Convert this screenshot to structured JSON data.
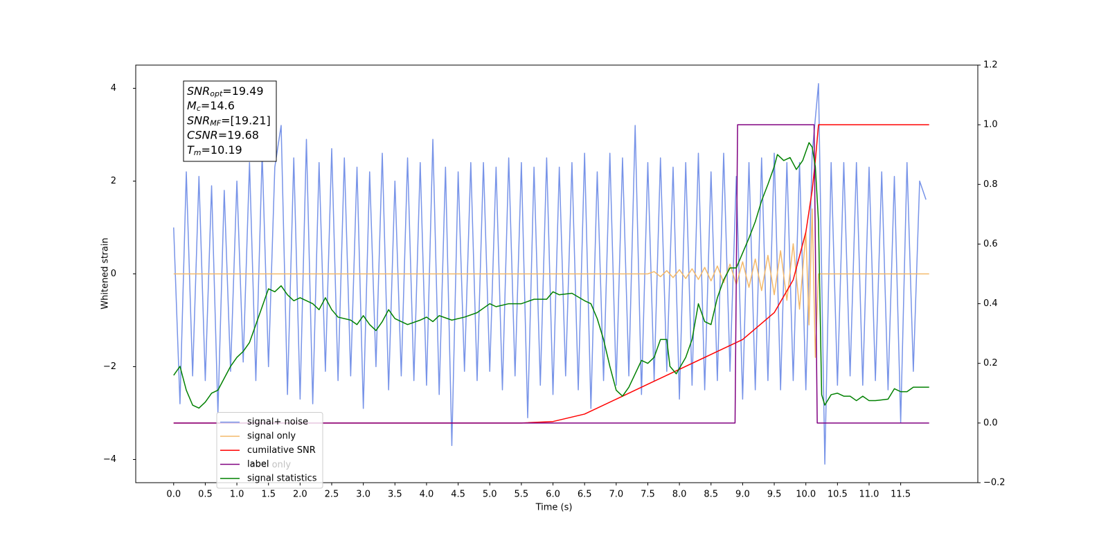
{
  "chart_data": {
    "type": "line",
    "xlabel": "Time (s)",
    "ylabel": "Whitened strain",
    "xlim": [
      -0.6,
      12.72
    ],
    "ylim": [
      -4.5,
      4.5
    ],
    "y2lim": [
      -0.2,
      1.2
    ],
    "xticks": [
      {
        "value": 0,
        "label": "0.0"
      },
      {
        "value": 0.5,
        "label": "0.5"
      },
      {
        "value": 1,
        "label": "1.0"
      },
      {
        "value": 1.5,
        "label": "1.5"
      },
      {
        "value": 2,
        "label": "2.0"
      },
      {
        "value": 2.5,
        "label": "2.5"
      },
      {
        "value": 3,
        "label": "3.0"
      },
      {
        "value": 3.5,
        "label": "3.5"
      },
      {
        "value": 4,
        "label": "4.0"
      },
      {
        "value": 4.5,
        "label": "4.5"
      },
      {
        "value": 5,
        "label": "5.0"
      },
      {
        "value": 5.5,
        "label": "5.5"
      },
      {
        "value": 6,
        "label": "6.0"
      },
      {
        "value": 6.5,
        "label": "6.5"
      },
      {
        "value": 7,
        "label": "7.0"
      },
      {
        "value": 7.5,
        "label": "7.5"
      },
      {
        "value": 8,
        "label": "8.0"
      },
      {
        "value": 8.5,
        "label": "8.5"
      },
      {
        "value": 9,
        "label": "9.0"
      },
      {
        "value": 9.5,
        "label": "9.5"
      },
      {
        "value": 10,
        "label": "10.0"
      },
      {
        "value": 10.5,
        "label": "10.5"
      },
      {
        "value": 11,
        "label": "11.0"
      },
      {
        "value": 11.5,
        "label": "11.5"
      }
    ],
    "yticks": [
      {
        "value": -4,
        "label": "−4"
      },
      {
        "value": -2,
        "label": "−2"
      },
      0,
      2,
      4
    ],
    "y2ticks": [
      {
        "value": -0.2,
        "label": "−0.2"
      },
      {
        "value": 0,
        "label": "0.0"
      },
      {
        "value": 0.2,
        "label": "0.2"
      },
      {
        "value": 0.4,
        "label": "0.4"
      },
      {
        "value": 0.6,
        "label": "0.6"
      },
      {
        "value": 0.8,
        "label": "0.8"
      },
      {
        "value": 1,
        "label": "1.0"
      },
      {
        "value": 1.2,
        "label": "1.2"
      }
    ],
    "legend": "lower left",
    "hidden_legend_entries": [
      "label only"
    ],
    "annotation_lines": [
      {
        "name": "SNR",
        "sub": "opt",
        "text": "=19.49"
      },
      {
        "name": "M",
        "sub": "c",
        "text": "=14.6"
      },
      {
        "name": "SNR",
        "sub": "MF",
        "text": "=[19.21]"
      },
      {
        "name": "CSNR",
        "text": "=19.68"
      },
      {
        "name": "T",
        "sub": "m",
        "text": "=10.19"
      }
    ],
    "series": [
      {
        "name": "signal+ noise",
        "color": "#7793e8",
        "x": [
          0,
          0.1,
          0.2,
          0.3,
          0.4,
          0.5,
          0.6,
          0.7,
          0.8,
          0.9,
          1,
          1.1,
          1.2,
          1.3,
          1.4,
          1.5,
          1.6,
          1.7,
          1.8,
          1.9,
          2,
          2.1,
          2.2,
          2.3,
          2.4,
          2.5,
          2.6,
          2.7,
          2.8,
          2.9,
          3,
          3.1,
          3.2,
          3.3,
          3.4,
          3.5,
          3.6,
          3.7,
          3.8,
          3.9,
          4,
          4.1,
          4.2,
          4.3,
          4.4,
          4.5,
          4.6,
          4.7,
          4.8,
          4.9,
          5,
          5.1,
          5.2,
          5.3,
          5.4,
          5.5,
          5.6,
          5.7,
          5.8,
          5.9,
          6,
          6.1,
          6.2,
          6.3,
          6.4,
          6.5,
          6.6,
          6.7,
          6.8,
          6.9,
          7,
          7.1,
          7.2,
          7.3,
          7.4,
          7.5,
          7.6,
          7.7,
          7.8,
          7.9,
          8,
          8.1,
          8.2,
          8.3,
          8.4,
          8.5,
          8.6,
          8.7,
          8.8,
          8.9,
          9,
          9.1,
          9.2,
          9.3,
          9.4,
          9.5,
          9.6,
          9.7,
          9.8,
          9.9,
          10,
          10.1,
          10.2,
          10.3,
          10.4,
          10.5,
          10.6,
          10.7,
          10.8,
          10.9,
          11,
          11.1,
          11.2,
          11.3,
          11.4,
          11.5,
          11.6,
          11.7,
          11.8,
          11.9
        ],
        "values": [
          1.0,
          -2.8,
          2.2,
          -2.2,
          2.1,
          -2.3,
          1.9,
          -3.0,
          1.8,
          -2.1,
          2.0,
          -1.9,
          2.4,
          -2.3,
          2.6,
          -2.0,
          2.3,
          3.2,
          -2.6,
          2.5,
          -2.7,
          2.9,
          -2.8,
          2.4,
          -2.1,
          2.7,
          -2.3,
          2.5,
          -2.2,
          2.3,
          -2.9,
          2.2,
          -2.0,
          2.6,
          -2.5,
          2.0,
          -2.2,
          2.5,
          -2.3,
          2.4,
          -2.4,
          2.9,
          -2.6,
          2.3,
          -3.7,
          2.2,
          -2.1,
          2.4,
          -2.3,
          2.4,
          -2.1,
          2.3,
          -2.5,
          2.5,
          -2.2,
          2.4,
          -3.1,
          2.3,
          -2.4,
          2.5,
          -2.6,
          2.3,
          -2.2,
          2.4,
          -2.5,
          2.6,
          -2.9,
          2.2,
          -2.3,
          2.6,
          -2.4,
          2.5,
          -2.2,
          3.2,
          -2.6,
          2.4,
          -2.3,
          2.5,
          -2.1,
          2.3,
          -2.7,
          2.4,
          -2.4,
          2.6,
          -2.5,
          2.2,
          -2.3,
          2.6,
          -2.1,
          2.1,
          -2.7,
          2.4,
          -2.5,
          2.5,
          -2.3,
          2.6,
          -2.5,
          2.4,
          -2.3,
          2.4,
          -2.5,
          2.6,
          4.1,
          -4.1,
          2.4,
          -2.4,
          2.4,
          -2.2,
          2.4,
          -2.4,
          2.3,
          -2.3,
          2.2,
          -2.5,
          2.1,
          -3.2,
          2.4,
          -2.1,
          2.0,
          1.6
        ]
      },
      {
        "name": "signal only",
        "color": "#f4b96a",
        "x": [
          0,
          7.5,
          7.6,
          7.7,
          7.8,
          7.9,
          8,
          8.1,
          8.2,
          8.3,
          8.4,
          8.5,
          8.6,
          8.7,
          8.8,
          8.9,
          9,
          9.1,
          9.2,
          9.3,
          9.4,
          9.5,
          9.6,
          9.7,
          9.8,
          9.9,
          10,
          10.05,
          10.1,
          10.15,
          10.2,
          11.95
        ],
        "values": [
          0,
          0,
          0.05,
          -0.06,
          0.07,
          -0.08,
          0.09,
          -0.1,
          0.11,
          -0.12,
          0.14,
          -0.15,
          0.17,
          -0.19,
          0.21,
          -0.23,
          0.26,
          -0.29,
          0.32,
          -0.36,
          0.4,
          -0.45,
          0.5,
          -0.57,
          0.65,
          -0.76,
          0.9,
          -1.1,
          1.4,
          -1.8,
          0,
          0
        ]
      },
      {
        "name": "cumilative SNR",
        "color": "#ff0000",
        "axis": "y2",
        "x": [
          0,
          5.5,
          6,
          6.5,
          7,
          7.5,
          8,
          8.5,
          9,
          9.5,
          9.8,
          10,
          10.1,
          10.15,
          10.2,
          11.95
        ],
        "values": [
          0,
          0,
          0.005,
          0.03,
          0.08,
          0.13,
          0.18,
          0.23,
          0.28,
          0.37,
          0.48,
          0.64,
          0.78,
          0.88,
          1,
          1
        ]
      },
      {
        "name": "label",
        "color": "#800080",
        "axis": "y2",
        "x": [
          0,
          8.88,
          8.92,
          10.13,
          10.18,
          11.95
        ],
        "values": [
          0,
          0,
          1,
          1,
          0,
          0
        ]
      },
      {
        "name": "signal statistics",
        "color": "#008000",
        "axis": "y2",
        "x": [
          0,
          0.1,
          0.2,
          0.3,
          0.4,
          0.5,
          0.6,
          0.7,
          0.8,
          0.9,
          1,
          1.1,
          1.2,
          1.3,
          1.4,
          1.5,
          1.6,
          1.7,
          1.8,
          1.9,
          2,
          2.2,
          2.3,
          2.4,
          2.5,
          2.6,
          2.8,
          2.9,
          3,
          3.1,
          3.2,
          3.3,
          3.4,
          3.5,
          3.7,
          3.9,
          4,
          4.1,
          4.2,
          4.4,
          4.6,
          4.8,
          5,
          5.1,
          5.3,
          5.5,
          5.7,
          5.9,
          6,
          6.1,
          6.3,
          6.5,
          6.6,
          6.7,
          6.8,
          6.9,
          7,
          7.1,
          7.2,
          7.3,
          7.4,
          7.5,
          7.6,
          7.7,
          7.8,
          7.85,
          7.95,
          8.1,
          8.2,
          8.3,
          8.4,
          8.5,
          8.6,
          8.7,
          8.8,
          8.9,
          9,
          9.1,
          9.2,
          9.3,
          9.4,
          9.5,
          9.55,
          9.65,
          9.75,
          9.85,
          9.95,
          10.05,
          10.1,
          10.15,
          10.2,
          10.25,
          10.3,
          10.4,
          10.5,
          10.6,
          10.7,
          10.8,
          10.9,
          11,
          11.1,
          11.3,
          11.4,
          11.5,
          11.6,
          11.7,
          11.9,
          11.95
        ],
        "values": [
          0.16,
          0.19,
          0.11,
          0.06,
          0.05,
          0.07,
          0.1,
          0.11,
          0.15,
          0.19,
          0.22,
          0.24,
          0.27,
          0.33,
          0.39,
          0.45,
          0.44,
          0.46,
          0.43,
          0.41,
          0.42,
          0.4,
          0.38,
          0.42,
          0.38,
          0.355,
          0.345,
          0.33,
          0.36,
          0.33,
          0.31,
          0.34,
          0.38,
          0.35,
          0.33,
          0.345,
          0.355,
          0.34,
          0.36,
          0.345,
          0.355,
          0.37,
          0.4,
          0.39,
          0.4,
          0.4,
          0.415,
          0.415,
          0.44,
          0.43,
          0.435,
          0.41,
          0.4,
          0.35,
          0.28,
          0.19,
          0.11,
          0.09,
          0.12,
          0.165,
          0.21,
          0.2,
          0.22,
          0.28,
          0.28,
          0.19,
          0.165,
          0.22,
          0.28,
          0.4,
          0.34,
          0.33,
          0.42,
          0.48,
          0.52,
          0.52,
          0.57,
          0.62,
          0.675,
          0.745,
          0.8,
          0.86,
          0.9,
          0.88,
          0.89,
          0.85,
          0.88,
          0.94,
          0.925,
          0.86,
          0.675,
          0.095,
          0.06,
          0.095,
          0.1,
          0.09,
          0.09,
          0.075,
          0.09,
          0.075,
          0.075,
          0.08,
          0.115,
          0.105,
          0.105,
          0.12,
          0.12,
          0.12
        ]
      }
    ]
  }
}
